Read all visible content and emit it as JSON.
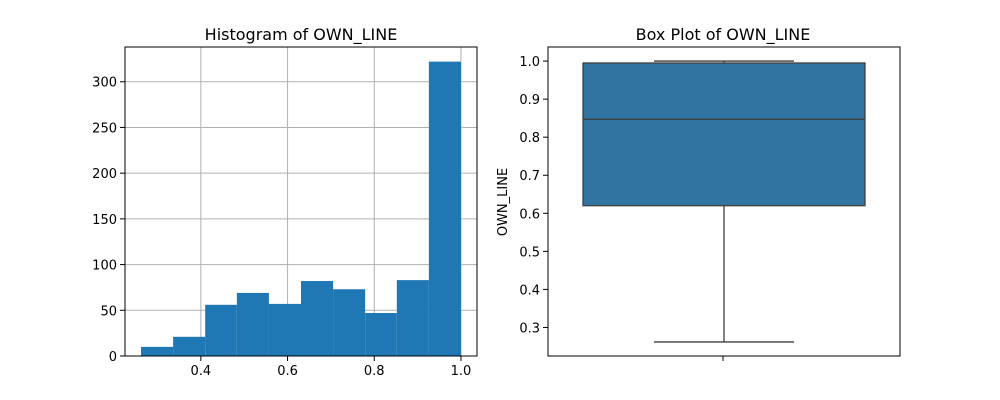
{
  "chart_data": [
    {
      "type": "bar",
      "subtype": "histogram",
      "title": "Histogram of OWN_LINE",
      "xlabel": "",
      "ylabel": "",
      "bins": [
        {
          "x0": 0.262,
          "x1": 0.336,
          "count": 10
        },
        {
          "x0": 0.336,
          "x1": 0.41,
          "count": 21
        },
        {
          "x0": 0.41,
          "x1": 0.483,
          "count": 56
        },
        {
          "x0": 0.483,
          "x1": 0.557,
          "count": 69
        },
        {
          "x0": 0.557,
          "x1": 0.631,
          "count": 57
        },
        {
          "x0": 0.631,
          "x1": 0.705,
          "count": 82
        },
        {
          "x0": 0.705,
          "x1": 0.779,
          "count": 73
        },
        {
          "x0": 0.779,
          "x1": 0.852,
          "count": 47
        },
        {
          "x0": 0.852,
          "x1": 0.926,
          "count": 83
        },
        {
          "x0": 0.926,
          "x1": 1.0,
          "count": 322
        }
      ],
      "xlim": [
        0.225,
        1.037
      ],
      "ylim": [
        0,
        338
      ],
      "xticks": [
        0.4,
        0.6,
        0.8,
        1.0
      ],
      "xtick_labels": [
        "0.4",
        "0.6",
        "0.8",
        "1.0"
      ],
      "yticks": [
        0,
        50,
        100,
        150,
        200,
        250,
        300
      ],
      "ytick_labels": [
        "0",
        "50",
        "100",
        "150",
        "200",
        "250",
        "300"
      ],
      "grid": true,
      "color": "#1f77b4"
    },
    {
      "type": "box",
      "title": "Box Plot of OWN_LINE",
      "xlabel": "",
      "ylabel": "OWN_LINE",
      "stats": {
        "whisker_low": 0.262,
        "q1": 0.62,
        "median": 0.847,
        "q3": 0.995,
        "whisker_high": 1.0
      },
      "ylim": [
        0.225,
        1.037
      ],
      "yticks": [
        0.3,
        0.4,
        0.5,
        0.6,
        0.7,
        0.8,
        0.9,
        1.0
      ],
      "ytick_labels": [
        "0.3",
        "0.4",
        "0.5",
        "0.6",
        "0.7",
        "0.8",
        "0.9",
        "1.0"
      ],
      "grid": false,
      "color": "#3274a1",
      "line_color": "#3f3f3f"
    }
  ]
}
